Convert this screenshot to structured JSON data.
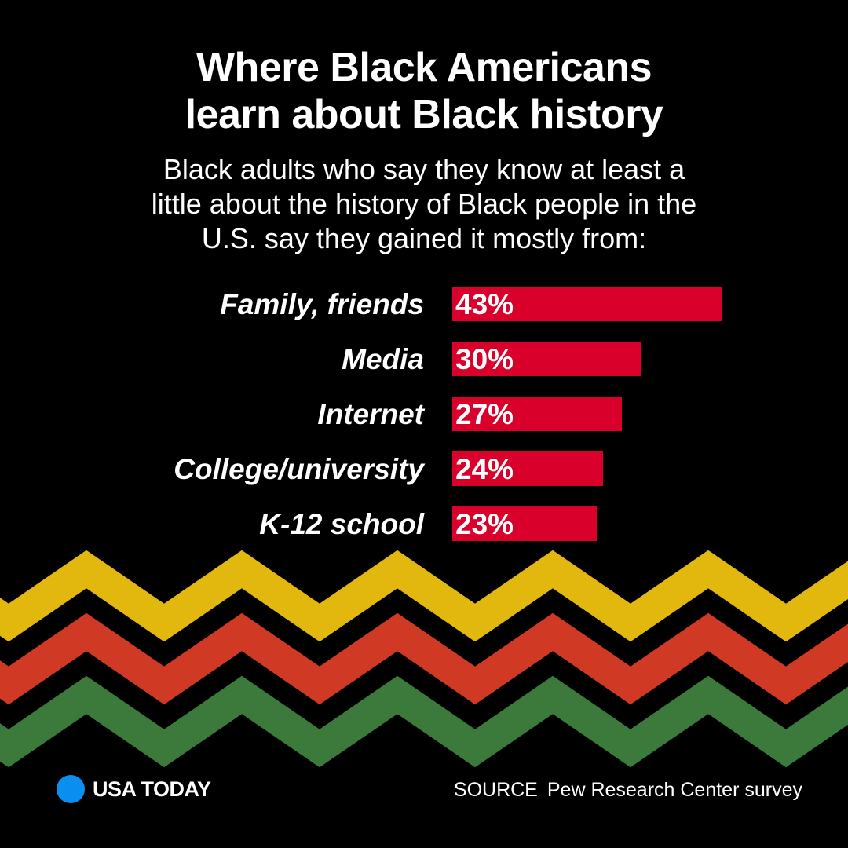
{
  "header": {
    "title_line1": "Where Black Americans",
    "title_line2": "learn about Black history",
    "subtitle_line1": "Black adults who say they know at least a",
    "subtitle_line2": "little about the history of Black people in the",
    "subtitle_line3": "U.S. say they gained it mostly from:"
  },
  "chart_data": {
    "type": "bar",
    "orientation": "horizontal",
    "categories": [
      "Family, friends",
      "Media",
      "Internet",
      "College/university",
      "K-12 school"
    ],
    "values": [
      43,
      30,
      27,
      24,
      23
    ],
    "value_labels": [
      "43%",
      "30%",
      "27%",
      "24%",
      "23%"
    ],
    "unit": "%",
    "bar_color": "#D9002B",
    "grid": false
  },
  "decoration": {
    "stripe_colors": [
      "#E2B80E",
      "#D03A24",
      "#3B7A3A"
    ]
  },
  "footer": {
    "brand": "USA TODAY",
    "brand_color": "#0A8FF0",
    "source_label": "SOURCE",
    "source_text": "Pew Research Center survey"
  }
}
